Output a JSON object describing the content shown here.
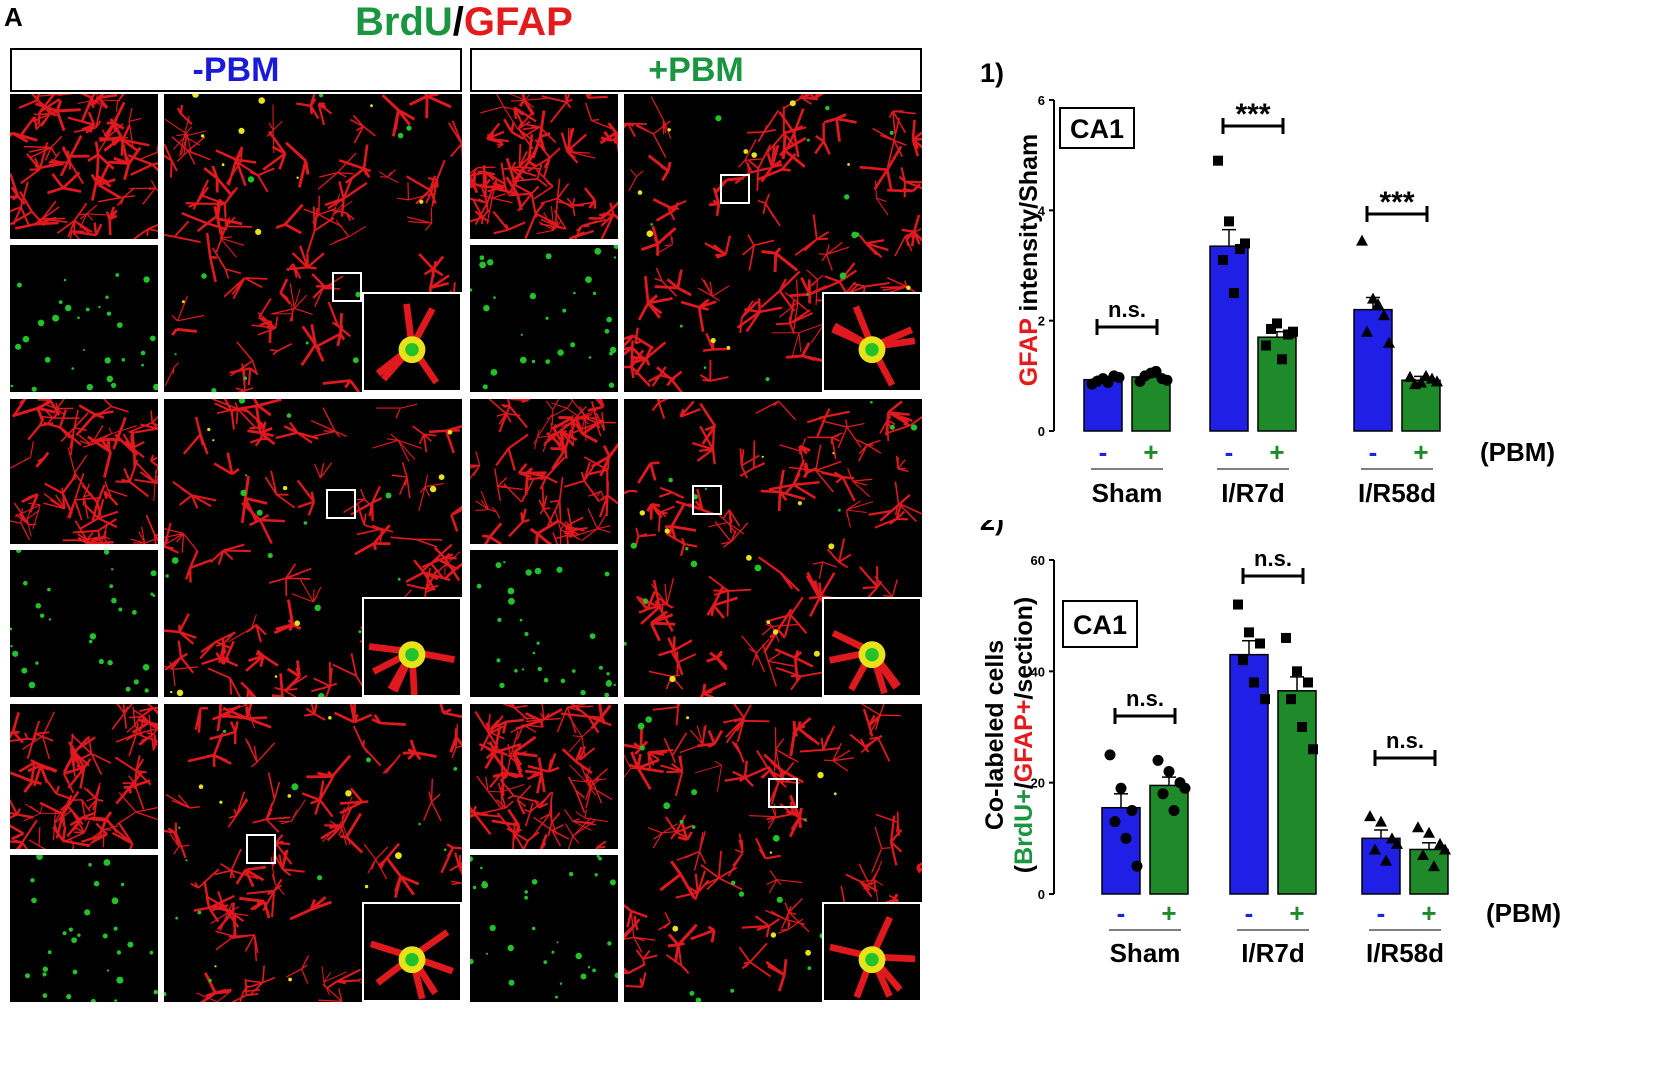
{
  "figure": {
    "panel_letter": "A",
    "stain_title": {
      "part1": "BrdU",
      "sep": "/",
      "part2": "GFAP",
      "color1": "#1a9641",
      "color2": "#e41a1c"
    },
    "conditions": [
      {
        "label": "-PBM",
        "color": "#1a1adb"
      },
      {
        "label": "+PBM",
        "color": "#1a9641"
      }
    ],
    "colors": {
      "red_channel": "#e0191e",
      "green_channel": "#22c22a",
      "bar_minus": "#1f1fe6",
      "bar_plus": "#1e8a2a"
    }
  },
  "chart_data": [
    {
      "type": "bar",
      "panel_label": "(a1)",
      "region_box": "CA1",
      "ylabel": {
        "prefix": "GFAP",
        "suffix": " intensity/Sham"
      },
      "ylim": [
        0,
        6
      ],
      "yticks": [
        "0",
        "2",
        "4",
        "6"
      ],
      "groups": [
        "Sham",
        "I/R7d",
        "I/R58d"
      ],
      "treatment_labels": [
        "-",
        "+"
      ],
      "treatment_title": "(PBM)",
      "series": [
        {
          "name": "-",
          "values": [
            0.93,
            3.35,
            2.2
          ],
          "errors": [
            0.06,
            0.3,
            0.22
          ]
        },
        {
          "name": "+",
          "values": [
            0.98,
            1.7,
            0.92
          ],
          "errors": [
            0.07,
            0.1,
            0.07
          ]
        }
      ],
      "points": [
        [
          [
            0.85,
            0.95,
            1.0,
            0.9,
            0.88,
            0.97
          ],
          [
            0.9,
            1.05,
            0.95,
            1.0,
            1.08,
            0.92
          ]
        ],
        [
          [
            4.9,
            3.8,
            3.3,
            3.1,
            2.5,
            3.4
          ],
          [
            1.55,
            1.95,
            1.75,
            1.85,
            1.3,
            1.8
          ]
        ],
        [
          [
            3.45,
            2.4,
            2.1,
            1.8,
            2.3,
            1.6
          ],
          [
            0.98,
            0.88,
            0.95,
            0.85,
            1.0,
            0.9
          ]
        ]
      ],
      "markers": [
        "circle",
        "square",
        "triangle"
      ],
      "significance": [
        "n.s.",
        "***",
        "***"
      ]
    },
    {
      "type": "bar",
      "panel_label": "(a2)",
      "region_box": "CA1",
      "ylabel": {
        "line1": "Co-labeled cells",
        "open": "(",
        "part1": "BrdU+",
        "sep": "/",
        "part2": "GFAP+",
        "close": "/section)"
      },
      "ylim": [
        0,
        60
      ],
      "yticks": [
        "0",
        "20",
        "40",
        "60"
      ],
      "groups": [
        "Sham",
        "I/R7d",
        "I/R58d"
      ],
      "treatment_labels": [
        "-",
        "+"
      ],
      "treatment_title": "(PBM)",
      "series": [
        {
          "name": "-",
          "values": [
            15.5,
            43,
            10
          ],
          "errors": [
            2.5,
            2.5,
            1.5
          ]
        },
        {
          "name": "+",
          "values": [
            19.5,
            36.5,
            8
          ],
          "errors": [
            1.5,
            2.5,
            1.2
          ]
        }
      ],
      "points": [
        [
          [
            25,
            19,
            15,
            13,
            10,
            5
          ],
          [
            24,
            22,
            20,
            18,
            15,
            19
          ]
        ],
        [
          [
            52,
            47,
            45,
            42,
            38,
            35
          ],
          [
            46,
            40,
            38,
            35,
            30,
            26
          ]
        ],
        [
          [
            14,
            13,
            10,
            8,
            6,
            9
          ],
          [
            12,
            11,
            9,
            7,
            5,
            8
          ]
        ]
      ],
      "markers": [
        "circle",
        "square",
        "triangle"
      ],
      "significance": [
        "n.s.",
        "n.s.",
        "n.s."
      ]
    }
  ]
}
